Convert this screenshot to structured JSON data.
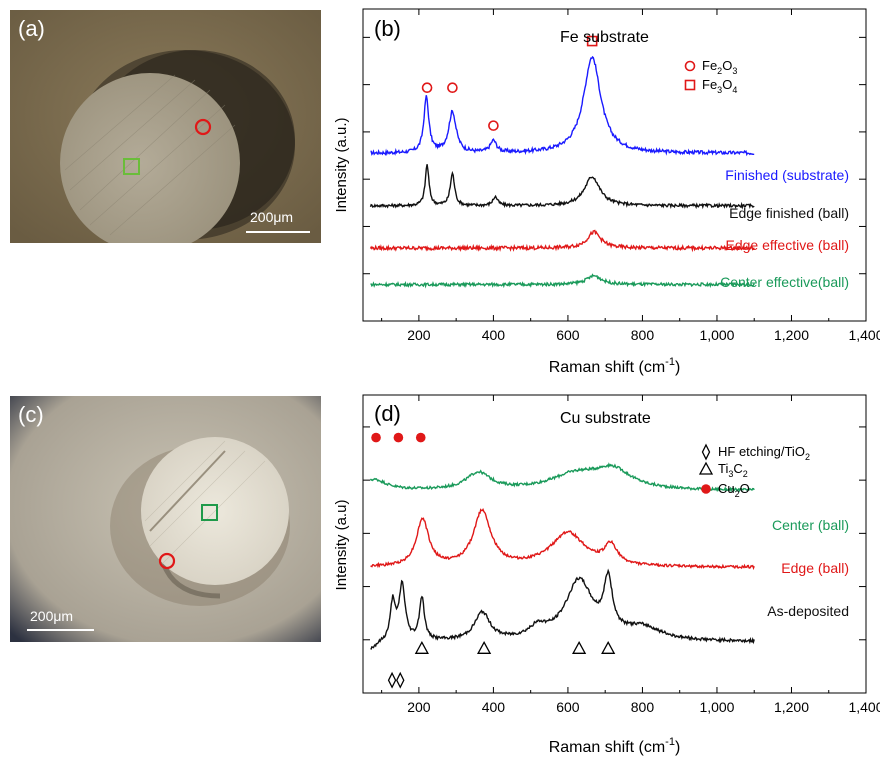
{
  "panel_a": {
    "label": "(a)",
    "scalebar": "200μm",
    "colors": {
      "circle": "#e01818",
      "square": "#6abd3a"
    }
  },
  "panel_c": {
    "label": "(c)",
    "scalebar": "200μm",
    "colors": {
      "circle": "#e01818",
      "square": "#1f9a4a"
    }
  },
  "chart_data": [
    {
      "panel": "(b)",
      "type": "line",
      "title": "Fe substrate",
      "xlabel_main": "Raman shift (cm",
      "xlabel_sup": "-1",
      "xlabel_end": ")",
      "ylabel": "Intensity (a.u.)",
      "xlim": [
        50,
        1400
      ],
      "xticks": [
        "200",
        "400",
        "600",
        "800",
        "1,000",
        "1,200",
        "1,400"
      ],
      "yticks": "unlabeled",
      "legend": [
        {
          "symbol": "open-circle",
          "color": "#e01818",
          "label": "Fe",
          "sub": "2",
          "label2": "O",
          "sub2": "3"
        },
        {
          "symbol": "open-square",
          "color": "#e01818",
          "label": "Fe",
          "sub": "3",
          "label2": "O",
          "sub2": "4"
        }
      ],
      "series": [
        {
          "name": "Finished (substrate)",
          "color": "#1a1aff",
          "baseline": 5.55,
          "noise": 0.06,
          "peaks": [
            [
              220,
              1.9,
              8
            ],
            [
              290,
              1.4,
              12
            ],
            [
              400,
              0.4,
              10
            ],
            [
              665,
              3.3,
              28
            ]
          ]
        },
        {
          "name": "Edge finished (ball)",
          "color": "#111111",
          "baseline": 3.75,
          "noise": 0.05,
          "peaks": [
            [
              222,
              1.4,
              6
            ],
            [
              290,
              1.1,
              7
            ],
            [
              405,
              0.3,
              8
            ],
            [
              665,
              1.0,
              25
            ]
          ]
        },
        {
          "name": "Edge effective (ball)",
          "color": "#e01818",
          "baseline": 2.3,
          "noise": 0.06,
          "peaks": [
            [
              670,
              0.55,
              22
            ]
          ]
        },
        {
          "name": "Center effective(ball)",
          "color": "#1a9a5a",
          "baseline": 1.05,
          "noise": 0.05,
          "peaks": [
            [
              670,
              0.3,
              25
            ]
          ]
        }
      ],
      "markers": [
        {
          "symbol": "open-circle",
          "color": "#e01818",
          "x": 222,
          "y": 7.8
        },
        {
          "symbol": "open-circle",
          "color": "#e01818",
          "x": 290,
          "y": 7.8
        },
        {
          "symbol": "open-circle",
          "color": "#e01818",
          "x": 400,
          "y": 6.5
        },
        {
          "symbol": "open-square",
          "color": "#e01818",
          "x": 665,
          "y": 9.4
        }
      ]
    },
    {
      "panel": "(d)",
      "type": "line",
      "title": "Cu substrate",
      "xlabel_main": "Raman shift (cm",
      "xlabel_sup": "-1",
      "xlabel_end": ")",
      "ylabel": "Intensity (a.u)",
      "xlim": [
        50,
        1400
      ],
      "xticks": [
        "200",
        "400",
        "600",
        "800",
        "1,000",
        "1,200",
        "1,400"
      ],
      "yticks": "unlabeled",
      "legend": [
        {
          "symbol": "open-diamond",
          "color": "#000000",
          "label": "HF etching/TiO",
          "sub": "2",
          "label2": "",
          "sub2": ""
        },
        {
          "symbol": "open-triangle",
          "color": "#000000",
          "label": "Ti",
          "sub": "3",
          "label2": "C",
          "sub2": "2"
        },
        {
          "symbol": "filled-circle",
          "color": "#e01818",
          "label": "Cu",
          "sub": "2",
          "label2": "O",
          "sub2": ""
        }
      ],
      "series": [
        {
          "name": "Center (ball)",
          "color": "#1a9a5a",
          "baseline": 8.0,
          "noise": 0.06,
          "peaks": [
            [
              80,
              0.5,
              40
            ],
            [
              360,
              0.8,
              40
            ],
            [
              620,
              0.7,
              80
            ],
            [
              720,
              0.9,
              60
            ]
          ]
        },
        {
          "name": "Edge (ball)",
          "color": "#e01818",
          "baseline": 4.4,
          "noise": 0.06,
          "peaks": [
            [
              210,
              2.2,
              20
            ],
            [
              370,
              2.6,
              28
            ],
            [
              600,
              1.6,
              55
            ],
            [
              715,
              0.9,
              20
            ]
          ]
        },
        {
          "name": "As-deposited",
          "color": "#111111",
          "baseline": 0.9,
          "noise": 0.07,
          "peaks": [
            [
              70,
              -0.4,
              20
            ],
            [
              130,
              1.8,
              8
            ],
            [
              155,
              2.6,
              10
            ],
            [
              208,
              2.0,
              8
            ],
            [
              370,
              1.3,
              25
            ],
            [
              520,
              0.5,
              30
            ],
            [
              630,
              2.8,
              45
            ],
            [
              708,
              2.4,
              14
            ],
            [
              800,
              0.6,
              60
            ]
          ]
        }
      ],
      "markers": [
        {
          "symbol": "filled-circle",
          "color": "#e01818",
          "x": 85,
          "y": 10.5
        },
        {
          "symbol": "filled-circle",
          "color": "#e01818",
          "x": 145,
          "y": 10.5
        },
        {
          "symbol": "filled-circle",
          "color": "#e01818",
          "x": 205,
          "y": 10.5
        },
        {
          "symbol": "open-triangle",
          "color": "#000000",
          "x": 208,
          "y": 0.6
        },
        {
          "symbol": "open-triangle",
          "color": "#000000",
          "x": 375,
          "y": 0.6
        },
        {
          "symbol": "open-triangle",
          "color": "#000000",
          "x": 630,
          "y": 0.6
        },
        {
          "symbol": "open-triangle",
          "color": "#000000",
          "x": 708,
          "y": 0.6
        },
        {
          "symbol": "open-diamond",
          "color": "#000000",
          "x": 128,
          "y": -0.9
        },
        {
          "symbol": "open-diamond",
          "color": "#000000",
          "x": 150,
          "y": -0.9
        }
      ]
    }
  ]
}
